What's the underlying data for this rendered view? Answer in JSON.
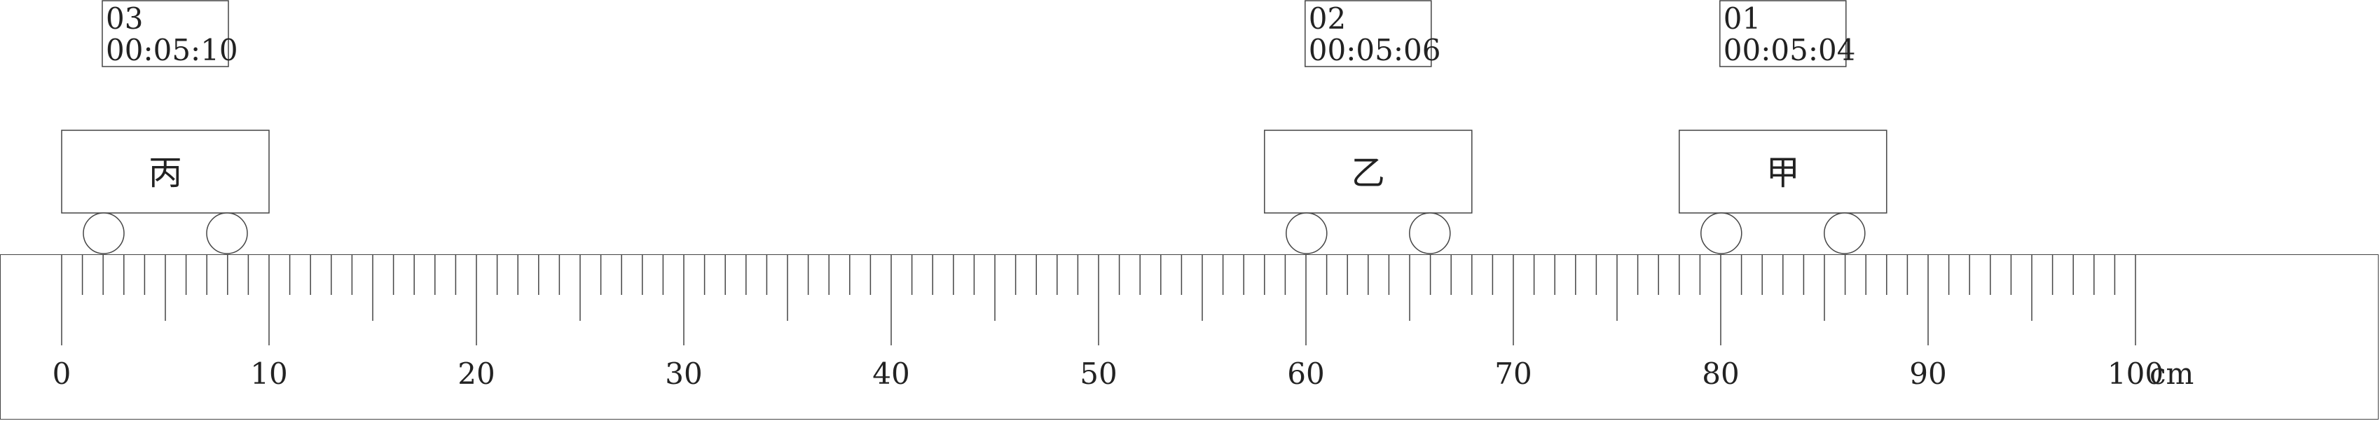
{
  "ruler": {
    "min": 0,
    "max": 100,
    "unit": "cm",
    "major_labels": [
      "0",
      "10",
      "20",
      "30",
      "40",
      "50",
      "60",
      "70",
      "80",
      "90",
      "100"
    ]
  },
  "carts": [
    {
      "id": "bing",
      "label": "丙",
      "number": "03",
      "time": "00:05:10",
      "position_cm": 5
    },
    {
      "id": "yi",
      "label": "乙",
      "number": "02",
      "time": "00:05:06",
      "position_cm": 63
    },
    {
      "id": "jia",
      "label": "甲",
      "number": "01",
      "time": "00:05:04",
      "position_cm": 83
    }
  ]
}
